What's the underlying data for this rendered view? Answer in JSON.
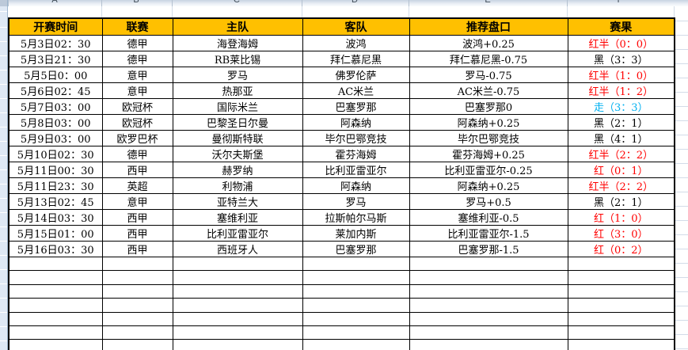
{
  "sheet": {
    "column_letters": [
      "A",
      "B",
      "C",
      "D",
      "E",
      "F"
    ],
    "header_bg": "#FFC000",
    "gridline_color": "#D3DCE8",
    "result_colors": {
      "red": "#FF0000",
      "black": "#000000",
      "blue": "#00B0F0"
    }
  },
  "table": {
    "headers": [
      "开赛时间",
      "联赛",
      "主队",
      "客队",
      "推荐盘口",
      "赛果"
    ],
    "rows": [
      {
        "time": "5月3日02：30",
        "league": "德甲",
        "home": "海登海姆",
        "away": "波鸿",
        "handicap": "波鸿+0.25",
        "result": "红半（0：0）",
        "result_color": "red"
      },
      {
        "time": "5月3日21：30",
        "league": "德甲",
        "home": "RB莱比锡",
        "away": "拜仁慕尼黑",
        "handicap": "拜仁慕尼黑-0.75",
        "result": "黑（3：3）",
        "result_color": "black"
      },
      {
        "time": "5月5日0：00",
        "league": "意甲",
        "home": "罗马",
        "away": "佛罗伦萨",
        "handicap": "罗马-0.75",
        "result": "红半（1：0）",
        "result_color": "red"
      },
      {
        "time": "5月6日02：45",
        "league": "意甲",
        "home": "热那亚",
        "away": "AC米兰",
        "handicap": "AC米兰-0.75",
        "result": "红半（1：2）",
        "result_color": "red"
      },
      {
        "time": "5月7日03：00",
        "league": "欧冠杯",
        "home": "国际米兰",
        "away": "巴塞罗那",
        "handicap": "巴塞罗那0",
        "result": "走（3：3）",
        "result_color": "blue"
      },
      {
        "time": "5月8日03：00",
        "league": "欧冠杯",
        "home": "巴黎圣日尔曼",
        "away": "阿森纳",
        "handicap": "阿森纳+0.25",
        "result": "黑（2：1）",
        "result_color": "black"
      },
      {
        "time": "5月9日03：00",
        "league": "欧罗巴杯",
        "home": "曼彻斯特联",
        "away": "毕尔巴鄂竞技",
        "handicap": "毕尔巴鄂竞技",
        "result": "黑（4：1）",
        "result_color": "black"
      },
      {
        "time": "5月10日02：30",
        "league": "德甲",
        "home": "沃尔夫斯堡",
        "away": "霍芬海姆",
        "handicap": "霍芬海姆+0.25",
        "result": "红半（2：2）",
        "result_color": "red"
      },
      {
        "time": "5月11日00：30",
        "league": "西甲",
        "home": "赫罗纳",
        "away": "比利亚雷亚尔",
        "handicap": "比利亚雷亚尔-0.25",
        "result": "红（0：1）",
        "result_color": "red"
      },
      {
        "time": "5月11日23：30",
        "league": "英超",
        "home": "利物浦",
        "away": "阿森纳",
        "handicap": "阿森纳+0.25",
        "result": "红半（2：2）",
        "result_color": "red"
      },
      {
        "time": "5月13日02：45",
        "league": "意甲",
        "home": "亚特兰大",
        "away": "罗马",
        "handicap": "罗马+0.5",
        "result": "黑（2：1）",
        "result_color": "black"
      },
      {
        "time": "5月14日03：30",
        "league": "西甲",
        "home": "塞维利亚",
        "away": "拉斯帕尔马斯",
        "handicap": "塞维利亚-0.5",
        "result": "红（1：0）",
        "result_color": "red"
      },
      {
        "time": "5月15日01：00",
        "league": "西甲",
        "home": "比利亚雷亚尔",
        "away": "莱加内斯",
        "handicap": "比利亚雷亚尔-1.5",
        "result": "红（3：0）",
        "result_color": "red"
      },
      {
        "time": "5月16日03：30",
        "league": "西甲",
        "home": "西班牙人",
        "away": "巴塞罗那",
        "handicap": "巴塞罗那-1.5",
        "result": "红（0：2）",
        "result_color": "red"
      }
    ],
    "empty_row_count": 7
  }
}
